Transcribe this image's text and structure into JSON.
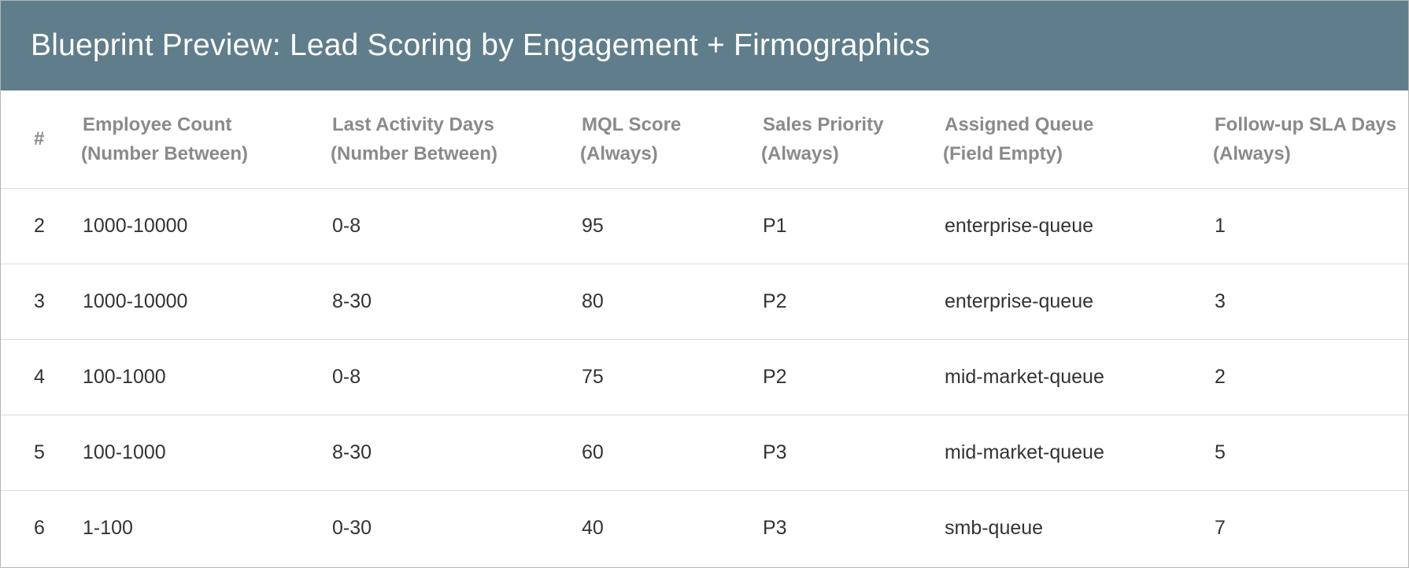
{
  "title": "Blueprint Preview: Lead Scoring by Engagement + Firmographics",
  "columns": [
    {
      "name": "#",
      "sub": ""
    },
    {
      "name": "Employee Count",
      "sub": "(Number Between)"
    },
    {
      "name": "Last Activity Days",
      "sub": "(Number Between)"
    },
    {
      "name": "MQL Score",
      "sub": "(Always)"
    },
    {
      "name": "Sales Priority",
      "sub": "(Always)"
    },
    {
      "name": "Assigned Queue",
      "sub": "(Field Empty)"
    },
    {
      "name": "Follow-up SLA Days",
      "sub": "(Always)"
    }
  ],
  "rows": [
    [
      "2",
      "1000-10000",
      "0-8",
      "95",
      "P1",
      "enterprise-queue",
      "1"
    ],
    [
      "3",
      "1000-10000",
      "8-30",
      "80",
      "P2",
      "enterprise-queue",
      "3"
    ],
    [
      "4",
      "100-1000",
      "0-8",
      "75",
      "P2",
      "mid-market-queue",
      "2"
    ],
    [
      "5",
      "100-1000",
      "8-30",
      "60",
      "P3",
      "mid-market-queue",
      "5"
    ],
    [
      "6",
      "1-100",
      "0-30",
      "40",
      "P3",
      "smb-queue",
      "7"
    ]
  ]
}
